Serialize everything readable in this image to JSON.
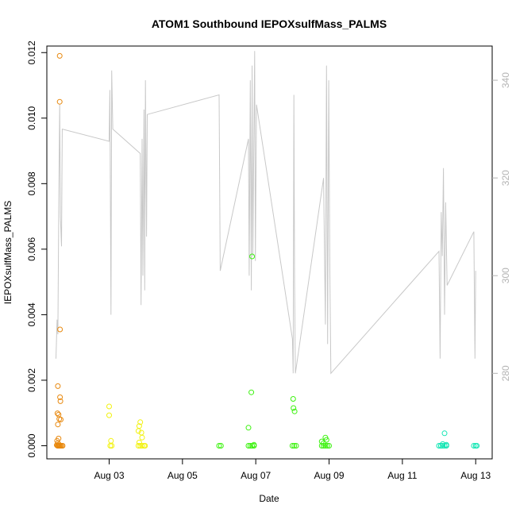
{
  "chart_data": {
    "type": "scatter",
    "title": "ATOM1 Southbound IEPOXsulfMass_PALMS",
    "xlabel": "Date",
    "ylabel": "IEPOXsulfMass_PALMS",
    "x_ticks": [
      "Aug 03",
      "Aug 05",
      "Aug 07",
      "Aug 09",
      "Aug 11",
      "Aug 13"
    ],
    "x_tick_days": [
      3,
      5,
      7,
      9,
      11,
      13
    ],
    "xlim_days": [
      1.3,
      13.45
    ],
    "y_ticks": [
      "0.000",
      "0.002",
      "0.004",
      "0.006",
      "0.008",
      "0.010",
      "0.012"
    ],
    "ylim": [
      -0.0004,
      0.0122
    ],
    "y2_ticks": [
      "280",
      "300",
      "320",
      "340"
    ],
    "y2lim": [
      262.5,
      347
    ],
    "grid": false,
    "series": [
      {
        "color": "#E8890F",
        "points": [
          [
            1.65,
            0.0119
          ],
          [
            1.65,
            0.0105
          ],
          [
            1.66,
            0.00355
          ],
          [
            1.6,
            0.00182
          ],
          [
            1.66,
            0.00148
          ],
          [
            1.67,
            0.00136
          ],
          [
            1.59,
            0.00099
          ],
          [
            1.62,
            0.00095
          ],
          [
            1.64,
            0.00082
          ],
          [
            1.68,
            0.0008
          ],
          [
            1.6,
            0.00065
          ],
          [
            1.62,
            0.00022
          ],
          [
            1.58,
            0.00015
          ],
          [
            1.6,
            8e-05
          ],
          [
            1.63,
            4e-05
          ],
          [
            1.57,
            2e-05
          ],
          [
            1.59,
            0.0
          ],
          [
            1.61,
            0.0
          ],
          [
            1.63,
            0.0
          ],
          [
            1.65,
            0.0
          ],
          [
            1.67,
            0.0
          ],
          [
            1.7,
            0.0
          ],
          [
            1.73,
            0.0
          ]
        ]
      },
      {
        "color": "#F2F20F",
        "points": [
          [
            3.0,
            0.0012
          ],
          [
            3.0,
            0.00093
          ],
          [
            3.05,
            0.00015
          ],
          [
            3.03,
            0.0
          ],
          [
            3.07,
            0.0
          ],
          [
            3.85,
            0.00072
          ],
          [
            3.82,
            0.0006
          ],
          [
            3.8,
            0.00045
          ],
          [
            3.88,
            0.0004
          ],
          [
            3.9,
            0.00025
          ],
          [
            3.82,
            0.0001
          ],
          [
            3.8,
            0.0
          ],
          [
            3.85,
            0.0
          ],
          [
            3.9,
            0.0
          ],
          [
            3.95,
            0.0
          ],
          [
            3.98,
            0.0
          ]
        ]
      },
      {
        "color": "#3CF20F",
        "points": [
          [
            6.0,
            0.0
          ],
          [
            6.05,
            0.0
          ],
          [
            6.8,
            0.00055
          ],
          [
            6.9,
            0.00578
          ],
          [
            6.88,
            0.00163
          ],
          [
            6.95,
            3e-05
          ],
          [
            6.8,
            0.0
          ],
          [
            6.85,
            0.0
          ],
          [
            6.9,
            0.0
          ],
          [
            6.95,
            0.0
          ],
          [
            8.02,
            0.00143
          ],
          [
            8.03,
            0.00115
          ],
          [
            8.06,
            0.00105
          ],
          [
            8.0,
            0.0
          ],
          [
            8.05,
            0.0
          ],
          [
            8.1,
            0.0
          ],
          [
            8.8,
            0.00013
          ],
          [
            8.9,
            0.00025
          ],
          [
            8.93,
            0.00018
          ],
          [
            8.85,
            8e-05
          ],
          [
            8.8,
            0.0
          ],
          [
            8.85,
            0.0
          ],
          [
            8.9,
            0.0
          ],
          [
            8.95,
            0.0
          ],
          [
            9.0,
            0.0
          ]
        ]
      },
      {
        "color": "#14E6B4",
        "points": [
          [
            12.05,
            0.0
          ],
          [
            12.15,
            0.00038
          ],
          [
            12.1,
            5e-05
          ],
          [
            12.2,
            3e-05
          ],
          [
            12.0,
            0.0
          ],
          [
            12.05,
            0.0
          ],
          [
            12.1,
            0.0
          ],
          [
            12.15,
            0.0
          ],
          [
            12.2,
            0.0
          ],
          [
            12.95,
            0.0
          ],
          [
            13.0,
            0.0
          ],
          [
            13.03,
            0.0
          ]
        ]
      }
    ],
    "line_series": {
      "color": "#C8C8C8",
      "points": [
        [
          1.55,
          283
        ],
        [
          1.58,
          291
        ],
        [
          1.6,
          288
        ],
        [
          1.63,
          318
        ],
        [
          1.65,
          335
        ],
        [
          1.67,
          312
        ],
        [
          1.7,
          306
        ],
        [
          1.72,
          330
        ],
        [
          3.0,
          327.5
        ],
        [
          3.02,
          338
        ],
        [
          3.05,
          292
        ],
        [
          3.07,
          342
        ],
        [
          3.1,
          330
        ],
        [
          3.85,
          325
        ],
        [
          3.87,
          294
        ],
        [
          3.9,
          328
        ],
        [
          3.92,
          300
        ],
        [
          3.95,
          334
        ],
        [
          3.97,
          297
        ],
        [
          3.99,
          340
        ],
        [
          4.02,
          308
        ],
        [
          4.04,
          333
        ],
        [
          6.0,
          337
        ],
        [
          6.03,
          301
        ],
        [
          6.8,
          328
        ],
        [
          6.82,
          300
        ],
        [
          6.85,
          340
        ],
        [
          6.88,
          297
        ],
        [
          6.9,
          343
        ],
        [
          6.92,
          304
        ],
        [
          6.95,
          330
        ],
        [
          6.97,
          346
        ],
        [
          6.99,
          303
        ],
        [
          7.02,
          335
        ],
        [
          8.0,
          287
        ],
        [
          8.02,
          280
        ],
        [
          8.04,
          337
        ],
        [
          8.06,
          298
        ],
        [
          8.08,
          280
        ],
        [
          8.85,
          320
        ],
        [
          8.9,
          290
        ],
        [
          8.93,
          343
        ],
        [
          8.96,
          286
        ],
        [
          8.99,
          340
        ],
        [
          9.02,
          301
        ],
        [
          9.05,
          280
        ],
        [
          12.0,
          305
        ],
        [
          12.03,
          283
        ],
        [
          12.06,
          313
        ],
        [
          12.09,
          304
        ],
        [
          12.12,
          322
        ],
        [
          12.15,
          292
        ],
        [
          12.18,
          315
        ],
        [
          12.22,
          298
        ],
        [
          12.95,
          309
        ],
        [
          12.98,
          283
        ],
        [
          13.0,
          301
        ]
      ]
    }
  }
}
